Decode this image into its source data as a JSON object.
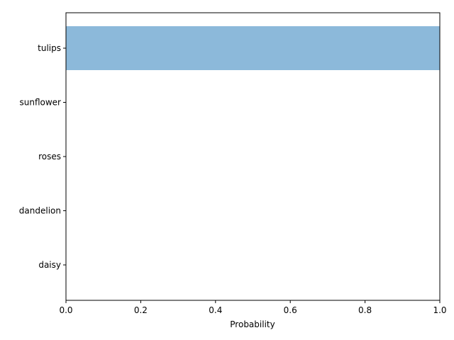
{
  "chart_data": {
    "type": "bar",
    "orientation": "horizontal",
    "categories": [
      "tulips",
      "sunflower",
      "roses",
      "dandelion",
      "daisy"
    ],
    "values": [
      1.0,
      0.0,
      0.0,
      0.0,
      0.0
    ],
    "title": "",
    "xlabel": "Probability",
    "ylabel": "",
    "xlim": [
      0.0,
      1.0
    ],
    "xticks": [
      "0.0",
      "0.2",
      "0.4",
      "0.6",
      "0.8",
      "1.0"
    ],
    "grid": false,
    "bar_color": "#8cb9da"
  }
}
